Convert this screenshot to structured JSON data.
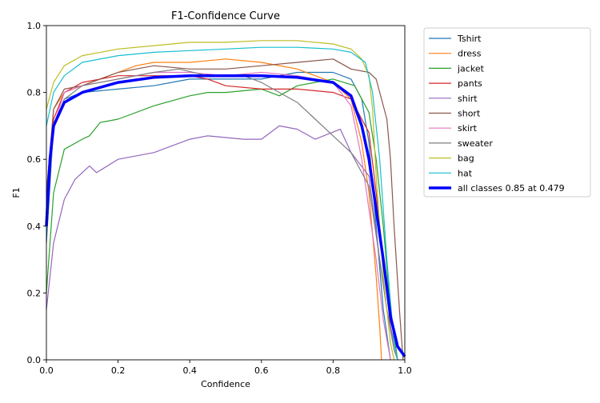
{
  "chart_data": {
    "type": "line",
    "title": "F1-Confidence Curve",
    "xlabel": "Confidence",
    "ylabel": "F1",
    "xlim": [
      0,
      1
    ],
    "ylim": [
      0,
      1
    ],
    "xticks": [
      "0.0",
      "0.2",
      "0.4",
      "0.6",
      "0.8",
      "1.0"
    ],
    "yticks": [
      "0.0",
      "0.2",
      "0.4",
      "0.6",
      "0.8",
      "1.0"
    ],
    "grid": false,
    "legend_position": "outside-right-top",
    "series": [
      {
        "name": "Tshirt",
        "color": "#1f77b4",
        "width": 1.2,
        "points": [
          [
            0,
            0.35
          ],
          [
            0.02,
            0.7
          ],
          [
            0.05,
            0.78
          ],
          [
            0.1,
            0.8
          ],
          [
            0.2,
            0.81
          ],
          [
            0.3,
            0.82
          ],
          [
            0.4,
            0.84
          ],
          [
            0.5,
            0.84
          ],
          [
            0.6,
            0.84
          ],
          [
            0.7,
            0.86
          ],
          [
            0.8,
            0.86
          ],
          [
            0.85,
            0.84
          ],
          [
            0.88,
            0.78
          ],
          [
            0.9,
            0.65
          ],
          [
            0.92,
            0.4
          ],
          [
            0.94,
            0.15
          ],
          [
            0.96,
            0
          ]
        ]
      },
      {
        "name": "dress",
        "color": "#ff7f0e",
        "width": 1.2,
        "points": [
          [
            0,
            0.5
          ],
          [
            0.02,
            0.75
          ],
          [
            0.05,
            0.8
          ],
          [
            0.1,
            0.82
          ],
          [
            0.2,
            0.86
          ],
          [
            0.25,
            0.88
          ],
          [
            0.3,
            0.89
          ],
          [
            0.4,
            0.89
          ],
          [
            0.5,
            0.9
          ],
          [
            0.6,
            0.89
          ],
          [
            0.7,
            0.87
          ],
          [
            0.75,
            0.85
          ],
          [
            0.8,
            0.83
          ],
          [
            0.85,
            0.78
          ],
          [
            0.88,
            0.65
          ],
          [
            0.9,
            0.5
          ],
          [
            0.92,
            0.25
          ],
          [
            0.93,
            0.1
          ],
          [
            0.935,
            0
          ]
        ]
      },
      {
        "name": "jacket",
        "color": "#2ca02c",
        "width": 1.2,
        "points": [
          [
            0,
            0.2
          ],
          [
            0.02,
            0.5
          ],
          [
            0.05,
            0.63
          ],
          [
            0.1,
            0.66
          ],
          [
            0.12,
            0.67
          ],
          [
            0.15,
            0.71
          ],
          [
            0.2,
            0.72
          ],
          [
            0.3,
            0.76
          ],
          [
            0.4,
            0.79
          ],
          [
            0.45,
            0.8
          ],
          [
            0.5,
            0.8
          ],
          [
            0.6,
            0.81
          ],
          [
            0.65,
            0.79
          ],
          [
            0.7,
            0.82
          ],
          [
            0.8,
            0.84
          ],
          [
            0.86,
            0.82
          ],
          [
            0.9,
            0.74
          ],
          [
            0.92,
            0.6
          ],
          [
            0.94,
            0.4
          ],
          [
            0.96,
            0.15
          ],
          [
            0.98,
            0
          ]
        ]
      },
      {
        "name": "pants",
        "color": "#d62728",
        "width": 1.2,
        "points": [
          [
            0,
            0.4
          ],
          [
            0.02,
            0.72
          ],
          [
            0.05,
            0.8
          ],
          [
            0.1,
            0.83
          ],
          [
            0.2,
            0.85
          ],
          [
            0.3,
            0.85
          ],
          [
            0.4,
            0.85
          ],
          [
            0.45,
            0.84
          ],
          [
            0.5,
            0.82
          ],
          [
            0.6,
            0.81
          ],
          [
            0.7,
            0.81
          ],
          [
            0.8,
            0.8
          ],
          [
            0.85,
            0.78
          ],
          [
            0.9,
            0.68
          ],
          [
            0.92,
            0.5
          ],
          [
            0.94,
            0.3
          ],
          [
            0.96,
            0.1
          ],
          [
            0.98,
            0
          ]
        ]
      },
      {
        "name": "shirt",
        "color": "#9467bd",
        "width": 1.2,
        "points": [
          [
            0,
            0.15
          ],
          [
            0.02,
            0.35
          ],
          [
            0.05,
            0.48
          ],
          [
            0.08,
            0.54
          ],
          [
            0.1,
            0.56
          ],
          [
            0.12,
            0.58
          ],
          [
            0.14,
            0.56
          ],
          [
            0.2,
            0.6
          ],
          [
            0.3,
            0.62
          ],
          [
            0.4,
            0.66
          ],
          [
            0.45,
            0.67
          ],
          [
            0.55,
            0.66
          ],
          [
            0.6,
            0.66
          ],
          [
            0.65,
            0.7
          ],
          [
            0.7,
            0.69
          ],
          [
            0.75,
            0.66
          ],
          [
            0.82,
            0.69
          ],
          [
            0.85,
            0.62
          ],
          [
            0.9,
            0.55
          ],
          [
            0.93,
            0.3
          ],
          [
            0.95,
            0.15
          ],
          [
            0.97,
            0.05
          ],
          [
            0.98,
            0
          ]
        ]
      },
      {
        "name": "short",
        "color": "#8c564b",
        "width": 1.2,
        "points": [
          [
            0,
            0.5
          ],
          [
            0.02,
            0.75
          ],
          [
            0.05,
            0.81
          ],
          [
            0.1,
            0.82
          ],
          [
            0.2,
            0.86
          ],
          [
            0.25,
            0.87
          ],
          [
            0.3,
            0.88
          ],
          [
            0.4,
            0.87
          ],
          [
            0.5,
            0.87
          ],
          [
            0.6,
            0.88
          ],
          [
            0.7,
            0.89
          ],
          [
            0.8,
            0.9
          ],
          [
            0.85,
            0.87
          ],
          [
            0.9,
            0.86
          ],
          [
            0.92,
            0.84
          ],
          [
            0.95,
            0.72
          ],
          [
            0.96,
            0.6
          ],
          [
            0.97,
            0.4
          ],
          [
            0.985,
            0.15
          ],
          [
            0.995,
            0
          ]
        ]
      },
      {
        "name": "skirt",
        "color": "#e377c2",
        "width": 1.2,
        "points": [
          [
            0,
            0.4
          ],
          [
            0.02,
            0.7
          ],
          [
            0.05,
            0.8
          ],
          [
            0.1,
            0.82
          ],
          [
            0.2,
            0.84
          ],
          [
            0.3,
            0.86
          ],
          [
            0.4,
            0.86
          ],
          [
            0.5,
            0.85
          ],
          [
            0.6,
            0.86
          ],
          [
            0.7,
            0.85
          ],
          [
            0.8,
            0.83
          ],
          [
            0.85,
            0.76
          ],
          [
            0.88,
            0.6
          ],
          [
            0.9,
            0.45
          ],
          [
            0.92,
            0.3
          ],
          [
            0.94,
            0.12
          ],
          [
            0.96,
            0
          ]
        ]
      },
      {
        "name": "sweater",
        "color": "#7f7f7f",
        "width": 1.2,
        "points": [
          [
            0,
            0.4
          ],
          [
            0.02,
            0.7
          ],
          [
            0.05,
            0.78
          ],
          [
            0.1,
            0.82
          ],
          [
            0.2,
            0.84
          ],
          [
            0.3,
            0.86
          ],
          [
            0.37,
            0.87
          ],
          [
            0.45,
            0.85
          ],
          [
            0.55,
            0.85
          ],
          [
            0.6,
            0.83
          ],
          [
            0.65,
            0.8
          ],
          [
            0.7,
            0.77
          ],
          [
            0.75,
            0.72
          ],
          [
            0.8,
            0.67
          ],
          [
            0.85,
            0.62
          ],
          [
            0.9,
            0.52
          ],
          [
            0.93,
            0.3
          ],
          [
            0.95,
            0.15
          ],
          [
            0.97,
            0.03
          ],
          [
            0.98,
            0
          ]
        ]
      },
      {
        "name": "bag",
        "color": "#bcbd22",
        "width": 1.2,
        "points": [
          [
            0,
            0.75
          ],
          [
            0.02,
            0.83
          ],
          [
            0.05,
            0.88
          ],
          [
            0.1,
            0.91
          ],
          [
            0.2,
            0.93
          ],
          [
            0.3,
            0.94
          ],
          [
            0.4,
            0.95
          ],
          [
            0.5,
            0.95
          ],
          [
            0.6,
            0.955
          ],
          [
            0.7,
            0.955
          ],
          [
            0.8,
            0.945
          ],
          [
            0.85,
            0.93
          ],
          [
            0.88,
            0.9
          ],
          [
            0.9,
            0.85
          ],
          [
            0.91,
            0.75
          ],
          [
            0.92,
            0.55
          ],
          [
            0.94,
            0.25
          ],
          [
            0.96,
            0.05
          ],
          [
            0.97,
            0
          ]
        ]
      },
      {
        "name": "hat",
        "color": "#17becf",
        "width": 1.2,
        "points": [
          [
            0,
            0.7
          ],
          [
            0.02,
            0.8
          ],
          [
            0.05,
            0.85
          ],
          [
            0.1,
            0.89
          ],
          [
            0.2,
            0.91
          ],
          [
            0.3,
            0.92
          ],
          [
            0.4,
            0.925
          ],
          [
            0.5,
            0.93
          ],
          [
            0.6,
            0.935
          ],
          [
            0.7,
            0.935
          ],
          [
            0.8,
            0.93
          ],
          [
            0.85,
            0.92
          ],
          [
            0.89,
            0.89
          ],
          [
            0.91,
            0.8
          ],
          [
            0.93,
            0.6
          ],
          [
            0.95,
            0.3
          ],
          [
            0.97,
            0.05
          ],
          [
            0.98,
            0
          ]
        ]
      },
      {
        "name": "all classes 0.85 at 0.479",
        "color": "#0000ff",
        "width": 3.5,
        "points": [
          [
            0,
            0.4
          ],
          [
            0.01,
            0.6
          ],
          [
            0.02,
            0.7
          ],
          [
            0.05,
            0.77
          ],
          [
            0.1,
            0.8
          ],
          [
            0.2,
            0.83
          ],
          [
            0.3,
            0.845
          ],
          [
            0.4,
            0.85
          ],
          [
            0.479,
            0.85
          ],
          [
            0.6,
            0.85
          ],
          [
            0.7,
            0.845
          ],
          [
            0.8,
            0.83
          ],
          [
            0.85,
            0.79
          ],
          [
            0.88,
            0.7
          ],
          [
            0.9,
            0.6
          ],
          [
            0.92,
            0.45
          ],
          [
            0.94,
            0.3
          ],
          [
            0.96,
            0.13
          ],
          [
            0.98,
            0.04
          ],
          [
            1.0,
            0.01
          ]
        ]
      }
    ]
  }
}
